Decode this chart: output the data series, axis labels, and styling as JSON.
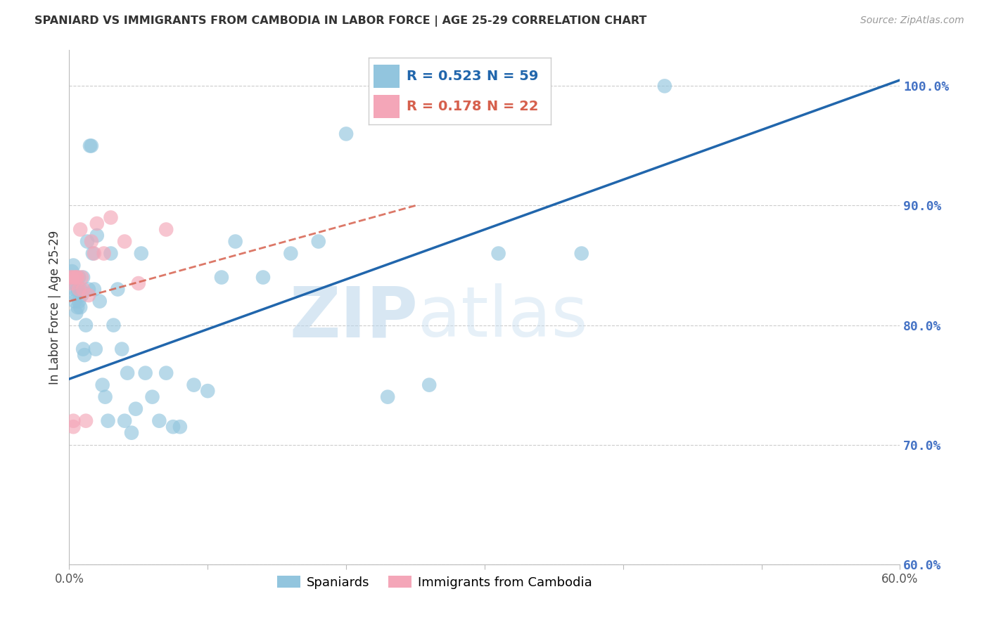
{
  "title": "SPANIARD VS IMMIGRANTS FROM CAMBODIA IN LABOR FORCE | AGE 25-29 CORRELATION CHART",
  "source": "Source: ZipAtlas.com",
  "ylabel": "In Labor Force | Age 25-29",
  "xlim": [
    0.0,
    0.6
  ],
  "ylim": [
    0.6,
    1.03
  ],
  "xticks": [
    0.0,
    0.1,
    0.2,
    0.3,
    0.4,
    0.5,
    0.6
  ],
  "xticklabels": [
    "0.0%",
    "",
    "",
    "",
    "",
    "",
    "60.0%"
  ],
  "yticks": [
    0.6,
    0.7,
    0.8,
    0.9,
    1.0
  ],
  "yticklabels": [
    "60.0%",
    "70.0%",
    "80.0%",
    "90.0%",
    "100.0%"
  ],
  "blue_color": "#92c5de",
  "pink_color": "#f4a6b8",
  "blue_line_color": "#2166ac",
  "pink_line_color": "#d6604d",
  "legend_R_blue": "R = 0.523",
  "legend_N_blue": "N = 59",
  "legend_R_pink": "R = 0.178",
  "legend_N_pink": "N = 22",
  "watermark_zip": "ZIP",
  "watermark_atlas": "atlas",
  "blue_scatter_x": [
    0.001,
    0.002,
    0.003,
    0.003,
    0.004,
    0.004,
    0.005,
    0.005,
    0.006,
    0.006,
    0.007,
    0.007,
    0.008,
    0.008,
    0.009,
    0.01,
    0.01,
    0.011,
    0.012,
    0.013,
    0.014,
    0.015,
    0.016,
    0.017,
    0.018,
    0.019,
    0.02,
    0.022,
    0.024,
    0.026,
    0.028,
    0.03,
    0.032,
    0.035,
    0.038,
    0.04,
    0.042,
    0.045,
    0.048,
    0.052,
    0.055,
    0.06,
    0.065,
    0.07,
    0.075,
    0.08,
    0.09,
    0.1,
    0.11,
    0.12,
    0.14,
    0.16,
    0.18,
    0.2,
    0.23,
    0.26,
    0.31,
    0.37,
    0.43
  ],
  "blue_scatter_y": [
    0.84,
    0.845,
    0.835,
    0.85,
    0.83,
    0.82,
    0.825,
    0.81,
    0.815,
    0.83,
    0.84,
    0.82,
    0.83,
    0.815,
    0.825,
    0.84,
    0.78,
    0.775,
    0.8,
    0.87,
    0.83,
    0.95,
    0.95,
    0.86,
    0.83,
    0.78,
    0.875,
    0.82,
    0.75,
    0.74,
    0.72,
    0.86,
    0.8,
    0.83,
    0.78,
    0.72,
    0.76,
    0.71,
    0.73,
    0.86,
    0.76,
    0.74,
    0.72,
    0.76,
    0.715,
    0.715,
    0.75,
    0.745,
    0.84,
    0.87,
    0.84,
    0.86,
    0.87,
    0.96,
    0.74,
    0.75,
    0.86,
    0.86,
    1.0
  ],
  "pink_scatter_x": [
    0.001,
    0.002,
    0.002,
    0.003,
    0.003,
    0.004,
    0.005,
    0.006,
    0.007,
    0.008,
    0.009,
    0.01,
    0.012,
    0.014,
    0.016,
    0.018,
    0.02,
    0.025,
    0.03,
    0.04,
    0.05,
    0.07
  ],
  "pink_scatter_y": [
    0.84,
    0.835,
    0.84,
    0.715,
    0.72,
    0.84,
    0.84,
    0.84,
    0.83,
    0.88,
    0.84,
    0.83,
    0.72,
    0.825,
    0.87,
    0.86,
    0.885,
    0.86,
    0.89,
    0.87,
    0.835,
    0.88
  ],
  "blue_trend_x": [
    0.0,
    0.6
  ],
  "blue_trend_y": [
    0.755,
    1.005
  ],
  "pink_trend_x": [
    0.0,
    0.25
  ],
  "pink_trend_y": [
    0.82,
    0.9
  ]
}
